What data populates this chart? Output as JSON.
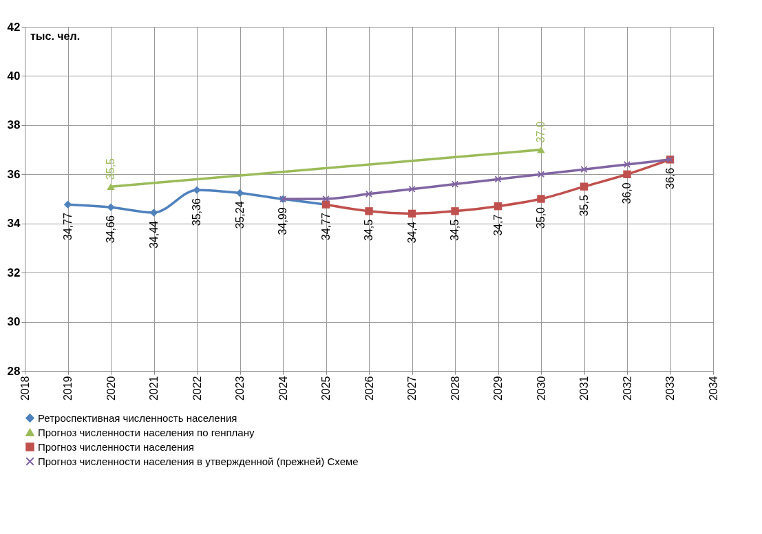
{
  "chart_data": {
    "type": "line",
    "ylabel": "тыс. чел.",
    "xlim": [
      2018,
      2034
    ],
    "xticks": [
      2018,
      2019,
      2020,
      2021,
      2022,
      2023,
      2024,
      2025,
      2026,
      2027,
      2028,
      2029,
      2030,
      2031,
      2032,
      2033,
      2034
    ],
    "ylim": [
      28,
      42
    ],
    "yticks": [
      28,
      30,
      32,
      34,
      36,
      38,
      40,
      42
    ],
    "grid": true,
    "legend": "bottom",
    "series": [
      {
        "name": "Ретроспективная численность населения",
        "color": "#4f81bd",
        "marker": "diamond",
        "x": [
          2019,
          2020,
          2021,
          2022,
          2023,
          2024,
          2025
        ],
        "values": [
          34.77,
          34.66,
          34.44,
          35.36,
          35.24,
          34.99,
          34.77
        ],
        "value_labels": [
          "34,77",
          "34,66",
          "34,44",
          "35,36",
          "35,24",
          "34,99",
          null
        ]
      },
      {
        "name": "Прогноз численности населения по генплану",
        "color": "#9bbb59",
        "marker": "triangle",
        "x": [
          2020,
          2030
        ],
        "values": [
          35.5,
          37.0
        ],
        "value_labels": [
          "35,5",
          "37,0"
        ]
      },
      {
        "name": "Прогноз численности населения",
        "color": "#c0504d",
        "marker": "square",
        "x": [
          2025,
          2026,
          2027,
          2028,
          2029,
          2030,
          2031,
          2032,
          2033
        ],
        "values": [
          34.77,
          34.5,
          34.4,
          34.5,
          34.7,
          35.0,
          35.5,
          36.0,
          36.6
        ],
        "value_labels": [
          "34,77",
          "34,5",
          "34,4",
          "34,5",
          "34,7",
          "35,0",
          "35,5",
          "36,0",
          "36,6"
        ]
      },
      {
        "name": "Прогноз численности населения в утвержденной (прежней) Схеме",
        "color": "#8064a2",
        "marker": "cross",
        "x": [
          2024,
          2025,
          2026,
          2027,
          2028,
          2029,
          2030,
          2031,
          2032,
          2033
        ],
        "values": [
          34.99,
          35.0,
          35.2,
          35.4,
          35.6,
          35.8,
          36.0,
          36.2,
          36.4,
          36.6
        ]
      }
    ]
  }
}
